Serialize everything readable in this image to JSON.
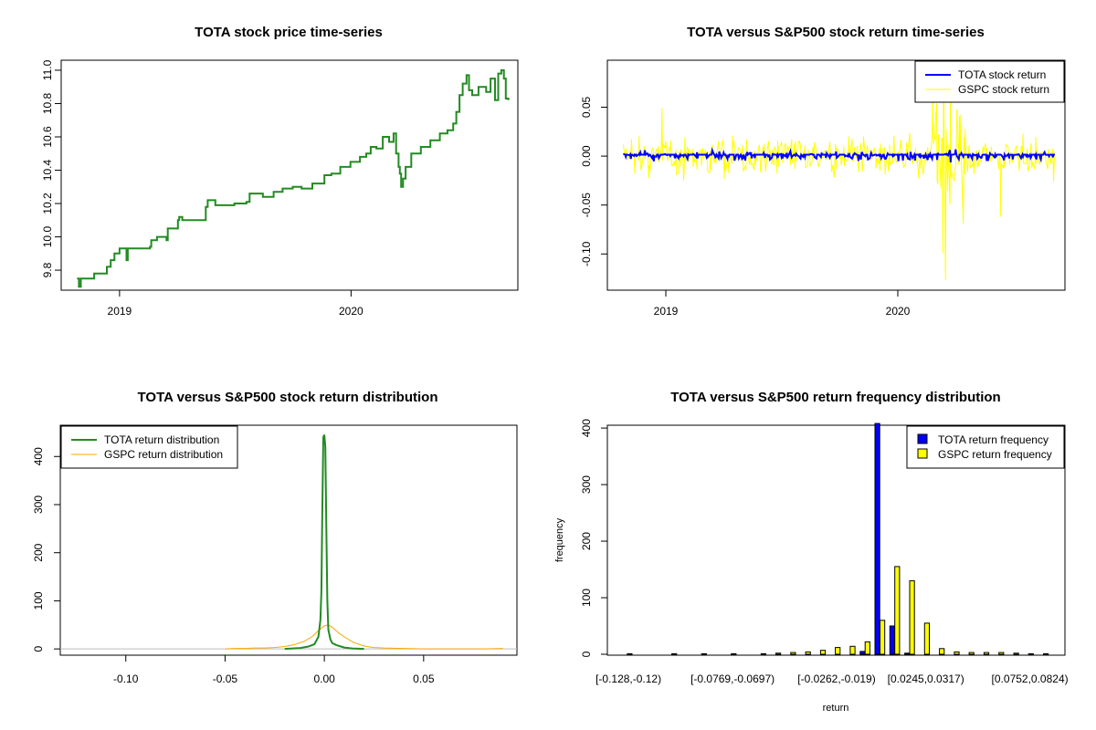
{
  "chart_data": [
    {
      "type": "line",
      "title": "TOTA stock price time-series",
      "x_ticks": [
        "2019",
        "2020"
      ],
      "y_ticks": [
        "9.8",
        "10.0",
        "10.2",
        "10.4",
        "10.6",
        "10.8",
        "11.0"
      ],
      "ylim": [
        9.68,
        11.06
      ],
      "xlim": [
        "2018-10-01",
        "2020-09-20"
      ],
      "color": "#228B22",
      "series": [
        {
          "points": [
            [
              "2018-10-26",
              9.75
            ],
            [
              "2018-10-29",
              9.7
            ],
            [
              "2018-11-01",
              9.75
            ],
            [
              "2018-11-20",
              9.75
            ],
            [
              "2018-11-22",
              9.78
            ],
            [
              "2018-12-10",
              9.78
            ],
            [
              "2018-12-12",
              9.82
            ],
            [
              "2018-12-18",
              9.86
            ],
            [
              "2018-12-24",
              9.9
            ],
            [
              "2019-01-01",
              9.93
            ],
            [
              "2019-01-10",
              9.93
            ],
            [
              "2019-01-12",
              9.86
            ],
            [
              "2019-01-14",
              9.93
            ],
            [
              "2019-02-18",
              9.94
            ],
            [
              "2019-02-20",
              9.98
            ],
            [
              "2019-03-01",
              10.0
            ],
            [
              "2019-03-14",
              10.0
            ],
            [
              "2019-03-16",
              9.98
            ],
            [
              "2019-03-18",
              10.05
            ],
            [
              "2019-04-01",
              10.05
            ],
            [
              "2019-04-03",
              10.1
            ],
            [
              "2019-04-05",
              10.12
            ],
            [
              "2019-04-10",
              10.1
            ],
            [
              "2019-05-15",
              10.1
            ],
            [
              "2019-05-17",
              10.18
            ],
            [
              "2019-05-20",
              10.22
            ],
            [
              "2019-06-01",
              10.19
            ],
            [
              "2019-07-01",
              10.2
            ],
            [
              "2019-07-20",
              10.21
            ],
            [
              "2019-07-25",
              10.26
            ],
            [
              "2019-08-15",
              10.24
            ],
            [
              "2019-09-01",
              10.27
            ],
            [
              "2019-09-15",
              10.29
            ],
            [
              "2019-10-01",
              10.3
            ],
            [
              "2019-10-15",
              10.29
            ],
            [
              "2019-11-01",
              10.32
            ],
            [
              "2019-11-20",
              10.37
            ],
            [
              "2019-12-01",
              10.38
            ],
            [
              "2019-12-15",
              10.42
            ],
            [
              "2019-12-31",
              10.45
            ],
            [
              "2020-01-15",
              10.48
            ],
            [
              "2020-01-25",
              10.5
            ],
            [
              "2020-02-01",
              10.54
            ],
            [
              "2020-02-10",
              10.53
            ],
            [
              "2020-02-20",
              10.6
            ],
            [
              "2020-03-01",
              10.57
            ],
            [
              "2020-03-08",
              10.62
            ],
            [
              "2020-03-12",
              10.5
            ],
            [
              "2020-03-16",
              10.42
            ],
            [
              "2020-03-18",
              10.38
            ],
            [
              "2020-03-20",
              10.3
            ],
            [
              "2020-03-23",
              10.35
            ],
            [
              "2020-03-27",
              10.42
            ],
            [
              "2020-04-05",
              10.5
            ],
            [
              "2020-04-20",
              10.54
            ],
            [
              "2020-05-05",
              10.58
            ],
            [
              "2020-05-20",
              10.62
            ],
            [
              "2020-06-01",
              10.64
            ],
            [
              "2020-06-10",
              10.68
            ],
            [
              "2020-06-15",
              10.75
            ],
            [
              "2020-06-20",
              10.85
            ],
            [
              "2020-06-25",
              10.92
            ],
            [
              "2020-07-01",
              10.97
            ],
            [
              "2020-07-05",
              10.88
            ],
            [
              "2020-07-10",
              10.85
            ],
            [
              "2020-07-20",
              10.9
            ],
            [
              "2020-08-01",
              10.87
            ],
            [
              "2020-08-08",
              10.95
            ],
            [
              "2020-08-15",
              10.82
            ],
            [
              "2020-08-20",
              10.98
            ],
            [
              "2020-08-25",
              11.0
            ],
            [
              "2020-08-29",
              10.95
            ],
            [
              "2020-09-01",
              10.83
            ],
            [
              "2020-09-05",
              10.82
            ]
          ]
        }
      ]
    },
    {
      "type": "line",
      "title": "TOTA versus S&P500 stock return time-series",
      "x_ticks": [
        "2019",
        "2020"
      ],
      "y_ticks": [
        "-0.10",
        "-0.05",
        "0.00",
        "0.05"
      ],
      "ylim": [
        -0.137,
        0.098
      ],
      "xlim": [
        "2018-10-01",
        "2020-09-20"
      ],
      "legend_position": "top-right",
      "series": [
        {
          "name": "TOTA stock return",
          "color": "#0000FF",
          "amplitude_std": 0.0035
        },
        {
          "name": "GSPC stock return",
          "color": "#FFFF00",
          "amplitude_std": 0.0125
        }
      ],
      "notable_points": [
        {
          "series": "GSPC stock return",
          "date": "2018-12-26",
          "value": 0.049
        },
        {
          "series": "GSPC stock return",
          "date": "2020-03-13",
          "value": 0.09
        },
        {
          "series": "GSPC stock return",
          "date": "2020-03-16",
          "value": -0.127
        },
        {
          "series": "GSPC stock return",
          "date": "2020-03-24",
          "value": 0.093
        },
        {
          "series": "GSPC stock return",
          "date": "2020-03-12",
          "value": -0.099
        },
        {
          "series": "GSPC stock return",
          "date": "2020-06-11",
          "value": -0.062
        }
      ]
    },
    {
      "type": "line",
      "title": "TOTA versus S&P500 stock return distribution",
      "x_ticks": [
        "-0.10",
        "-0.05",
        "0.00",
        "0.05"
      ],
      "y_ticks": [
        "0",
        "100",
        "200",
        "300",
        "400"
      ],
      "xlim": [
        -0.133,
        0.097
      ],
      "ylim": [
        -13,
        465
      ],
      "legend_position": "top-left",
      "series": [
        {
          "name": "TOTA return distribution",
          "color": "#228B22",
          "points": [
            [
              -0.02,
              0
            ],
            [
              -0.012,
              2
            ],
            [
              -0.008,
              5
            ],
            [
              -0.005,
              10
            ],
            [
              -0.003,
              25
            ],
            [
              -0.002,
              60
            ],
            [
              -0.0015,
              120
            ],
            [
              -0.001,
              300
            ],
            [
              -0.0005,
              440
            ],
            [
              0.0,
              445
            ],
            [
              0.0005,
              420
            ],
            [
              0.001,
              250
            ],
            [
              0.0015,
              100
            ],
            [
              0.002,
              40
            ],
            [
              0.003,
              20
            ],
            [
              0.004,
              12
            ],
            [
              0.006,
              8
            ],
            [
              0.01,
              3
            ],
            [
              0.014,
              1
            ],
            [
              0.02,
              0
            ]
          ]
        },
        {
          "name": "GSPC return distribution",
          "color": "#FFA500",
          "points": [
            [
              -0.05,
              0
            ],
            [
              -0.045,
              1
            ],
            [
              -0.04,
              1
            ],
            [
              -0.035,
              2
            ],
            [
              -0.03,
              2
            ],
            [
              -0.025,
              3
            ],
            [
              -0.02,
              5
            ],
            [
              -0.015,
              9
            ],
            [
              -0.01,
              16
            ],
            [
              -0.006,
              26
            ],
            [
              -0.003,
              38
            ],
            [
              0.0,
              48
            ],
            [
              0.002,
              50
            ],
            [
              0.004,
              45
            ],
            [
              0.007,
              34
            ],
            [
              0.01,
              25
            ],
            [
              0.015,
              13
            ],
            [
              0.02,
              6
            ],
            [
              0.025,
              3
            ],
            [
              0.03,
              2
            ],
            [
              0.04,
              1
            ],
            [
              0.05,
              0
            ],
            [
              0.06,
              0
            ],
            [
              0.08,
              0
            ],
            [
              0.09,
              1
            ]
          ]
        }
      ]
    },
    {
      "type": "bar",
      "title": "TOTA versus S&P500 return frequency distribution",
      "xlabel": "return",
      "ylabel": "frequency",
      "y_ticks": [
        "0",
        "100",
        "200",
        "300",
        "400"
      ],
      "ylim": [
        0,
        405
      ],
      "legend_position": "top-right",
      "category_labels": [
        "[-0.128,-0.12)",
        "[-0.0769,-0.0697)",
        "[-0.0262,-0.019)",
        "[0.0245,0.0317)",
        "[0.0752,0.0824)"
      ],
      "category_label_positions": [
        0,
        7,
        14,
        20,
        27
      ],
      "series": [
        {
          "name": "TOTA return frequency",
          "color": "#0000FF",
          "values": [
            0,
            0,
            0,
            0,
            0,
            0,
            0,
            0,
            0,
            0,
            0,
            0,
            0,
            0,
            0,
            0,
            5,
            408,
            50,
            2,
            0,
            0,
            0,
            0,
            0,
            0,
            0,
            0,
            0
          ]
        },
        {
          "name": "GSPC return frequency",
          "color": "#FFFF00",
          "values": [
            1,
            0,
            0,
            1,
            0,
            1,
            0,
            1,
            0,
            1,
            2,
            3,
            4,
            7,
            12,
            14,
            22,
            60,
            155,
            130,
            55,
            10,
            4,
            3,
            3,
            3,
            2,
            1,
            1
          ]
        }
      ]
    }
  ]
}
